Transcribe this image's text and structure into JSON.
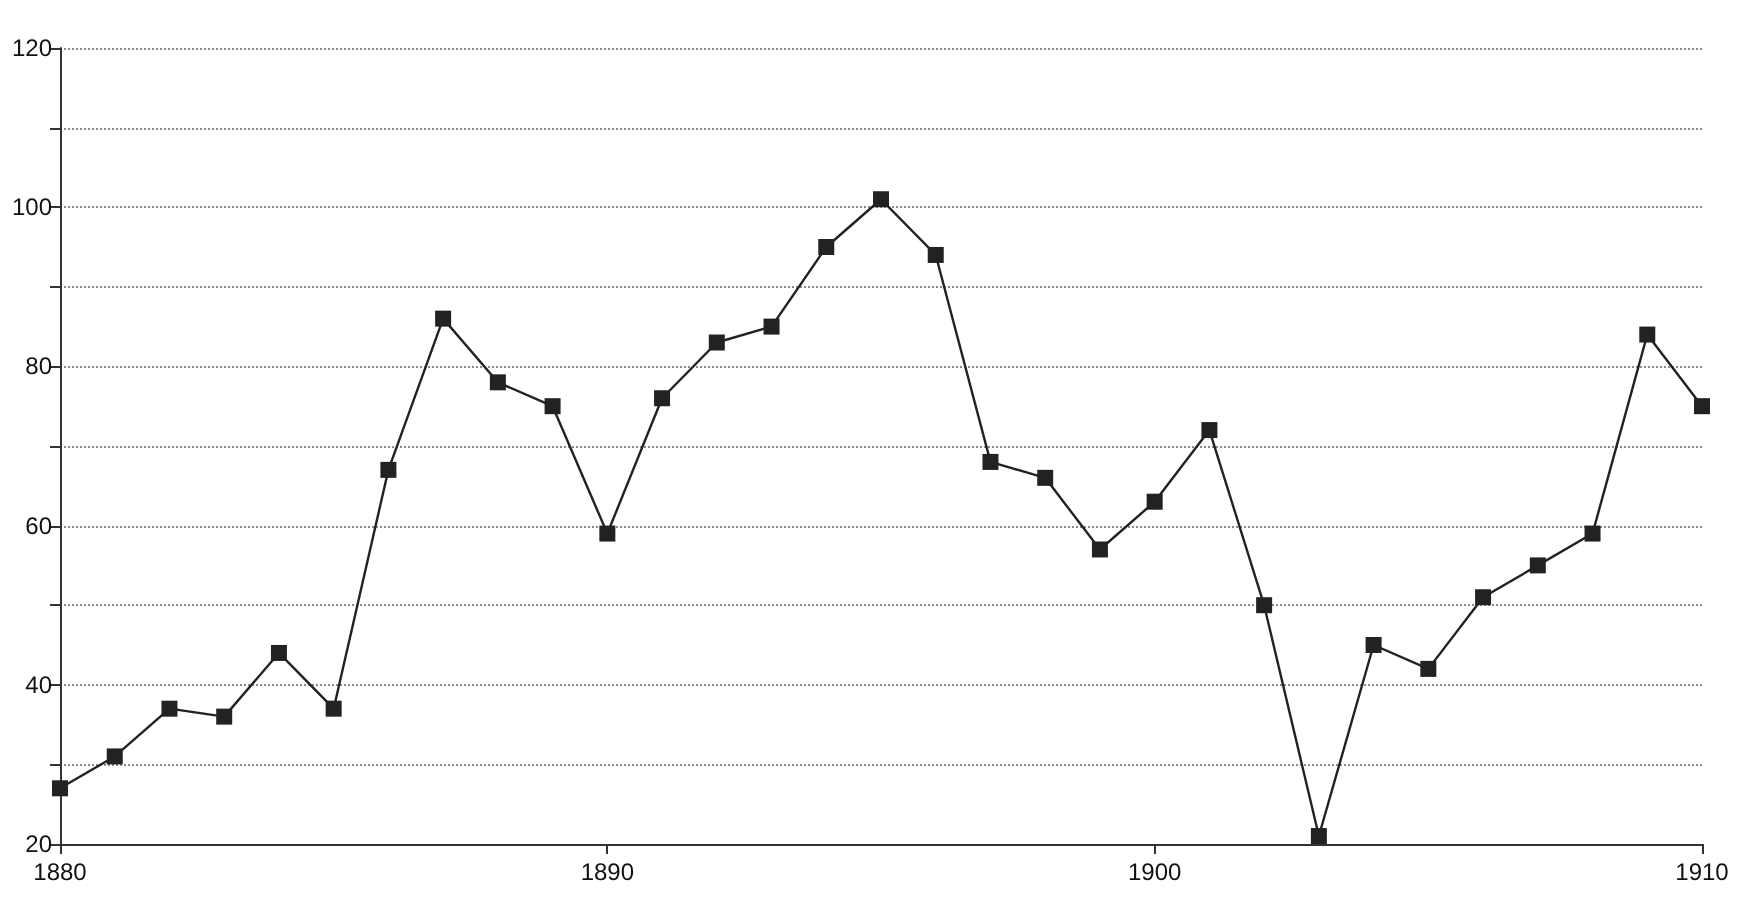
{
  "chart_data": {
    "type": "line",
    "x": [
      1880,
      1881,
      1882,
      1883,
      1884,
      1885,
      1886,
      1887,
      1888,
      1889,
      1890,
      1891,
      1892,
      1893,
      1894,
      1895,
      1896,
      1897,
      1898,
      1899,
      1900,
      1901,
      1902,
      1903,
      1904,
      1905,
      1906,
      1907,
      1908,
      1909,
      1910
    ],
    "series": [
      {
        "color": "#222222",
        "values": [
          27,
          31,
          37,
          36,
          44,
          37,
          67,
          86,
          78,
          75,
          59,
          76,
          83,
          85,
          95,
          101,
          94,
          68,
          66,
          57,
          63,
          72,
          50,
          21,
          45,
          42,
          51,
          55,
          59,
          84,
          75
        ]
      }
    ],
    "xlim": [
      1880,
      1910
    ],
    "xticks": [
      1880,
      1890,
      1900,
      1910
    ],
    "ylim": [
      20,
      120
    ],
    "yticks": [
      20,
      {
        "value": 30,
        "label": null
      },
      40,
      {
        "value": 50,
        "label": null
      },
      60,
      {
        "value": 70,
        "label": null
      },
      80,
      {
        "value": 90,
        "label": null
      },
      100,
      {
        "value": 110,
        "label": null
      },
      120
    ],
    "grid": "y",
    "marker": "square",
    "line_style": "solid"
  }
}
